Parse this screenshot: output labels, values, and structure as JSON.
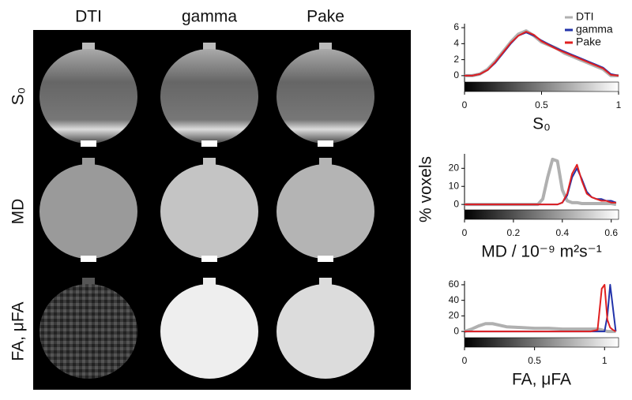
{
  "image_grid": {
    "columns": [
      "DTI",
      "gamma",
      "Pake"
    ],
    "rows": [
      "S₀",
      "MD",
      "FA, μFA"
    ]
  },
  "shared_ylabel": "% voxels",
  "chart_data": [
    {
      "type": "line",
      "xlabel": "S₀",
      "x": [
        0,
        0.05,
        0.1,
        0.15,
        0.2,
        0.25,
        0.3,
        0.35,
        0.4,
        0.45,
        0.5,
        0.55,
        0.6,
        0.65,
        0.7,
        0.75,
        0.8,
        0.85,
        0.9,
        0.95,
        1
      ],
      "series": [
        {
          "name": "DTI",
          "color": "#b0b0b0",
          "values": [
            0,
            0,
            0.2,
            0.8,
            1.8,
            3,
            4.2,
            5.2,
            5.6,
            5,
            4.2,
            3.8,
            3.4,
            2.8,
            2.4,
            2,
            1.6,
            1.2,
            0.8,
            0,
            0
          ]
        },
        {
          "name": "gamma",
          "color": "#2233aa",
          "values": [
            0,
            0,
            0.2,
            0.7,
            1.6,
            2.8,
            4,
            5,
            5.4,
            5,
            4.4,
            3.9,
            3.4,
            3,
            2.6,
            2.2,
            1.8,
            1.4,
            1,
            0.2,
            0
          ]
        },
        {
          "name": "Pake",
          "color": "#e02020",
          "values": [
            0,
            0,
            0.2,
            0.7,
            1.7,
            2.9,
            4.1,
            5,
            5.5,
            5.1,
            4.3,
            3.8,
            3.3,
            2.9,
            2.5,
            2.1,
            1.7,
            1.3,
            0.9,
            0.1,
            0
          ]
        }
      ],
      "xlim": [
        0,
        1
      ],
      "xticks": [
        0,
        0.5,
        1
      ],
      "ylim": [
        -0.8,
        6.5
      ],
      "yticks": [
        0,
        2,
        4,
        6
      ],
      "legend": "top-right"
    },
    {
      "type": "line",
      "xlabel": "MD / 10⁻⁹ m²s⁻¹",
      "x": [
        0,
        0.3,
        0.32,
        0.34,
        0.36,
        0.38,
        0.4,
        0.42,
        0.44,
        0.46,
        0.48,
        0.5,
        0.52,
        0.54,
        0.56,
        0.58,
        0.6,
        0.62
      ],
      "series": [
        {
          "name": "DTI",
          "color": "#b0b0b0",
          "values": [
            0,
            0,
            3,
            15,
            25,
            24,
            8,
            2,
            1,
            1,
            0.5,
            0.5,
            0.5,
            0.5,
            0.5,
            0.5,
            0.5,
            0
          ]
        },
        {
          "name": "gamma",
          "color": "#2233aa",
          "values": [
            0,
            0,
            0,
            0,
            0,
            0,
            1,
            5,
            15,
            20,
            14,
            7,
            4,
            3,
            3,
            2,
            2,
            1
          ]
        },
        {
          "name": "Pake",
          "color": "#e02020",
          "values": [
            0,
            0,
            0,
            0,
            0,
            0,
            1,
            6,
            17,
            22,
            13,
            6,
            4,
            3,
            2,
            2,
            1,
            1
          ]
        }
      ],
      "xlim": [
        0,
        0.63
      ],
      "xticks": [
        0,
        0.2,
        0.4,
        0.6
      ],
      "ylim": [
        -3,
        28
      ],
      "yticks": [
        0,
        10,
        20
      ]
    },
    {
      "type": "line",
      "xlabel": "FA, μFA",
      "x": [
        0,
        0.05,
        0.1,
        0.15,
        0.2,
        0.25,
        0.3,
        0.4,
        0.5,
        0.6,
        0.7,
        0.8,
        0.9,
        0.95,
        0.98,
        1,
        1.02,
        1.04,
        1.06,
        1.08
      ],
      "series": [
        {
          "name": "DTI",
          "color": "#b0b0b0",
          "values": [
            0,
            3,
            7,
            10,
            10,
            8,
            6,
            5,
            4,
            4,
            3,
            3,
            3,
            3,
            2,
            1,
            0,
            0,
            0,
            0
          ]
        },
        {
          "name": "gamma",
          "color": "#2233aa",
          "values": [
            0,
            0,
            0,
            0,
            0,
            0,
            0,
            0,
            0,
            0,
            0,
            0,
            0,
            0,
            0,
            0,
            20,
            60,
            30,
            0
          ]
        },
        {
          "name": "Pake",
          "color": "#e02020",
          "values": [
            0,
            0,
            0,
            0,
            0,
            0,
            0,
            0,
            0,
            0,
            0,
            0,
            0,
            2,
            55,
            60,
            15,
            5,
            2,
            0
          ]
        }
      ],
      "xlim": [
        0,
        1.1
      ],
      "xticks": [
        0,
        0.5,
        1
      ],
      "ylim": [
        -8,
        65
      ],
      "yticks": [
        0,
        20,
        40,
        60
      ]
    }
  ]
}
